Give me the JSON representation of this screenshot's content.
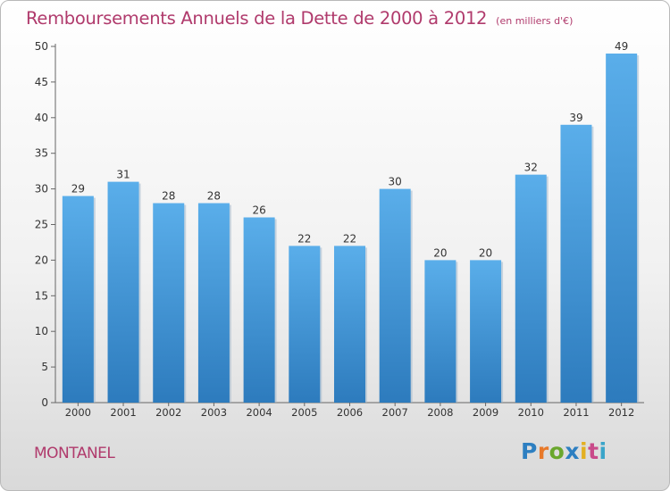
{
  "chart_data": {
    "type": "bar",
    "title": "Remboursements Annuels de la Dette de 2000 à 2012",
    "subtitle": "(en milliers d'€)",
    "categories": [
      "2000",
      "2001",
      "2002",
      "2003",
      "2004",
      "2005",
      "2006",
      "2007",
      "2008",
      "2009",
      "2010",
      "2011",
      "2012"
    ],
    "values": [
      29,
      31,
      28,
      28,
      26,
      22,
      22,
      30,
      20,
      20,
      32,
      39,
      49
    ],
    "yticks": [
      0,
      5,
      10,
      15,
      20,
      25,
      30,
      35,
      40,
      45,
      50
    ],
    "ylim": [
      0,
      50
    ],
    "xlabel": "",
    "ylabel": "",
    "grid": false,
    "bar_color": "#4a9fe0"
  },
  "footer": {
    "commune": "MONTANEL",
    "logo": {
      "name": "Proxiti",
      "letters": [
        "P",
        "r",
        "o",
        "x",
        "i",
        "t",
        "i"
      ]
    }
  }
}
